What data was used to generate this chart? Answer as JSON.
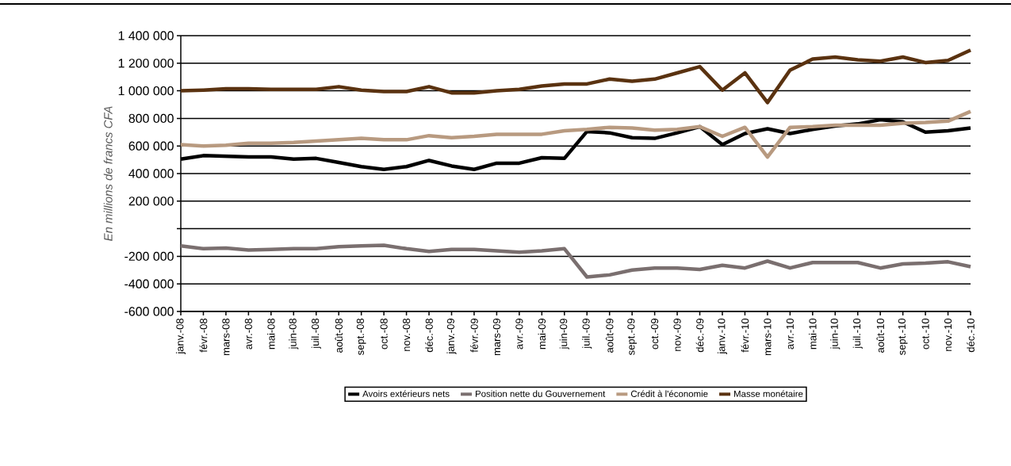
{
  "chart_data": {
    "type": "line",
    "ylabel": "En millions de francs CFA",
    "categories": [
      "janv.-08",
      "févr.-08",
      "mars-08",
      "avr.-08",
      "mai-08",
      "juin-08",
      "juil.-08",
      "août-08",
      "sept.-08",
      "oct.-08",
      "nov.-08",
      "déc.-08",
      "janv.-09",
      "févr.-09",
      "mars-09",
      "avr.-09",
      "mai-09",
      "juin-09",
      "juil.-09",
      "août-09",
      "sept.-09",
      "oct.-09",
      "nov.-09",
      "déc.-09",
      "janv.-10",
      "févr.-10",
      "mars-10",
      "avr.-10",
      "mai-10",
      "juin-10",
      "juil.-10",
      "août-10",
      "sept.-10",
      "oct.-10",
      "nov.-10",
      "déc.-10"
    ],
    "series": [
      {
        "name": "Avoirs extérieurs nets",
        "color": "#000000",
        "values": [
          505000,
          530000,
          525000,
          520000,
          520000,
          505000,
          510000,
          480000,
          450000,
          430000,
          450000,
          495000,
          455000,
          430000,
          475000,
          475000,
          515000,
          510000,
          705000,
          695000,
          660000,
          655000,
          695000,
          740000,
          610000,
          690000,
          725000,
          690000,
          720000,
          745000,
          760000,
          790000,
          775000,
          700000,
          710000,
          730000
        ]
      },
      {
        "name": "Position nette du Gouvernement",
        "color": "#7a6f6f",
        "values": [
          -125000,
          -145000,
          -140000,
          -155000,
          -150000,
          -145000,
          -145000,
          -130000,
          -125000,
          -120000,
          -145000,
          -165000,
          -150000,
          -150000,
          -160000,
          -170000,
          -160000,
          -145000,
          -350000,
          -335000,
          -300000,
          -285000,
          -285000,
          -295000,
          -265000,
          -285000,
          -235000,
          -285000,
          -245000,
          -245000,
          -245000,
          -285000,
          -255000,
          -250000,
          -240000,
          -275000
        ]
      },
      {
        "name": "Crédit à l'économie",
        "color": "#b89a80",
        "values": [
          610000,
          600000,
          605000,
          620000,
          620000,
          625000,
          635000,
          645000,
          655000,
          645000,
          645000,
          675000,
          660000,
          670000,
          685000,
          685000,
          685000,
          710000,
          720000,
          735000,
          730000,
          715000,
          720000,
          740000,
          670000,
          735000,
          520000,
          735000,
          740000,
          750000,
          750000,
          750000,
          765000,
          770000,
          780000,
          850000
        ]
      },
      {
        "name": "Masse monétaire",
        "color": "#5a3210",
        "values": [
          1000000,
          1005000,
          1015000,
          1015000,
          1010000,
          1010000,
          1010000,
          1030000,
          1005000,
          995000,
          995000,
          1030000,
          985000,
          985000,
          1000000,
          1010000,
          1035000,
          1050000,
          1050000,
          1085000,
          1070000,
          1085000,
          1130000,
          1175000,
          1005000,
          1130000,
          915000,
          1150000,
          1230000,
          1245000,
          1225000,
          1215000,
          1245000,
          1205000,
          1220000,
          1295000
        ]
      }
    ],
    "ylim": [
      -600000,
      1400000
    ],
    "yticks": [
      {
        "value": -600000,
        "label": "-600 000"
      },
      {
        "value": -400000,
        "label": "-400 000"
      },
      {
        "value": -200000,
        "label": "-200 000"
      },
      {
        "value": 0,
        "label": null
      },
      {
        "value": 200000,
        "label": "200 000"
      },
      {
        "value": 400000,
        "label": "400 000"
      },
      {
        "value": 600000,
        "label": "600 000"
      },
      {
        "value": 800000,
        "label": "800 000"
      },
      {
        "value": 1000000,
        "label": "1 000 000"
      },
      {
        "value": 1200000,
        "label": "1 200 000"
      },
      {
        "value": 1400000,
        "label": "1 400 000"
      }
    ],
    "grid": "y",
    "legend": "bottom",
    "line_style": "solid"
  }
}
